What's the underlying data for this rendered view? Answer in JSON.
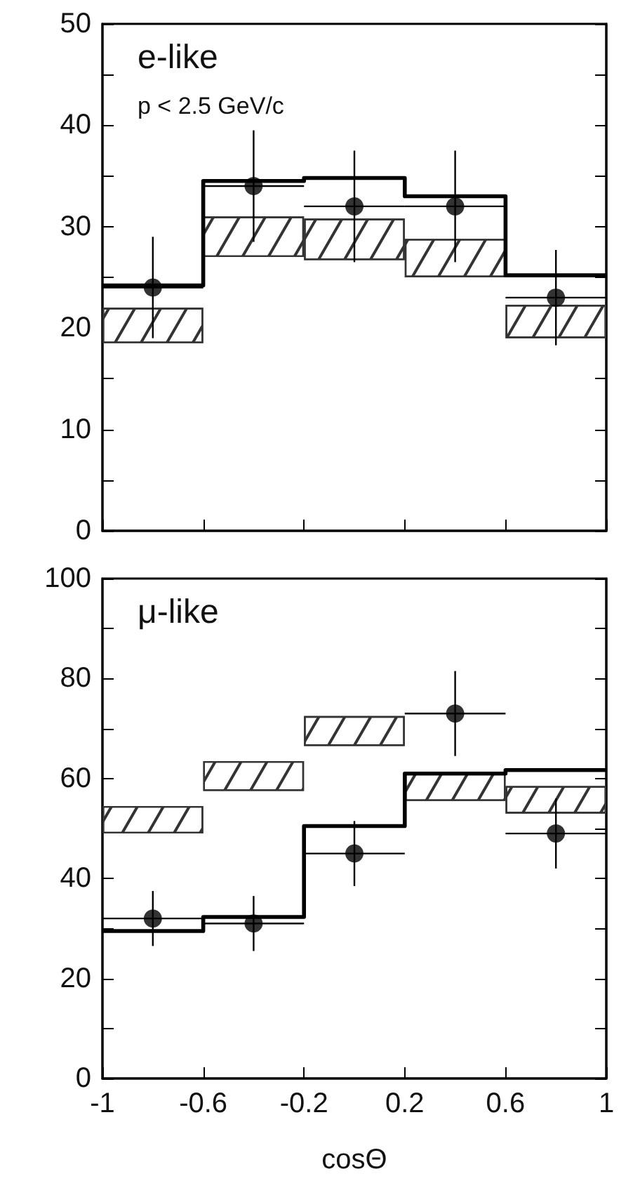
{
  "chart_data": [
    {
      "type": "scatter",
      "annotations": [
        "e-like",
        "p < 2.5 GeV/c"
      ],
      "xlim": [
        -1,
        1
      ],
      "xticks": [
        -1,
        -0.6,
        -0.2,
        0.2,
        0.6,
        1
      ],
      "ylim": [
        0,
        50
      ],
      "yticks": [
        0,
        {
          "value": 5,
          "label": null
        },
        10,
        {
          "value": 15,
          "label": null
        },
        20,
        {
          "value": 25,
          "label": null
        },
        30,
        {
          "value": 35,
          "label": null
        },
        40,
        {
          "value": 45,
          "label": null
        },
        50
      ],
      "tick_labels": "y",
      "grid": false,
      "series": [
        {
          "type": "bar",
          "color": "#333333",
          "x": [
            -0.8,
            -0.4,
            0,
            0.4,
            0.8
          ],
          "base": [
            18.5,
            27,
            26.7,
            25,
            19
          ],
          "values": [
            3.5,
            4,
            4.1,
            3.8,
            3.3
          ]
        },
        {
          "type": "step",
          "color": "#000000",
          "x": [
            -1,
            -0.6,
            -0.2,
            0.2,
            0.6,
            1
          ],
          "values": [
            24.2,
            34.5,
            34.8,
            33,
            25.2,
            25.2
          ],
          "marker": "none"
        },
        {
          "color": "#000000",
          "x": [
            -0.8,
            -0.4,
            0,
            0.4,
            0.8
          ],
          "values": [
            24,
            34,
            32,
            32,
            23
          ],
          "errors": [
            5,
            5.5,
            5.5,
            5.5,
            4.7
          ],
          "xerrors": [
            0.2,
            0.2,
            0.2,
            0.2,
            0.2
          ],
          "marker": "circle"
        }
      ]
    },
    {
      "type": "scatter",
      "annotations": [
        "μ-like"
      ],
      "xlabel": "cosΘ",
      "xlim": [
        -1,
        1
      ],
      "xticks": [
        -1,
        -0.6,
        -0.2,
        0.2,
        0.6,
        1
      ],
      "ylim": [
        0,
        100
      ],
      "yticks": [
        0,
        {
          "value": 10,
          "label": null
        },
        20,
        {
          "value": 30,
          "label": null
        },
        40,
        {
          "value": 50,
          "label": null
        },
        60,
        {
          "value": 70,
          "label": null
        },
        80,
        {
          "value": 90,
          "label": null
        },
        100
      ],
      "grid": false,
      "series": [
        {
          "type": "bar",
          "color": "#333333",
          "x": [
            -0.8,
            -0.4,
            0,
            0.4,
            0.8
          ],
          "base": [
            49,
            57.5,
            66.5,
            55.5,
            53
          ],
          "values": [
            5.5,
            6,
            6,
            5.5,
            5.5
          ]
        },
        {
          "type": "step",
          "color": "#000000",
          "x": [
            -1,
            -0.6,
            -0.2,
            0.2,
            0.6,
            1
          ],
          "values": [
            29.5,
            32.3,
            50.5,
            61,
            61.7,
            61.7
          ],
          "marker": "none"
        },
        {
          "color": "#000000",
          "x": [
            -0.8,
            -0.4,
            0,
            0.4,
            0.8
          ],
          "values": [
            32,
            31,
            45,
            73,
            49
          ],
          "errors": [
            5.5,
            5.5,
            6.5,
            8.5,
            7
          ],
          "xerrors": [
            0.2,
            0.2,
            0.2,
            0.2,
            0.2
          ],
          "marker": "circle"
        }
      ]
    }
  ]
}
